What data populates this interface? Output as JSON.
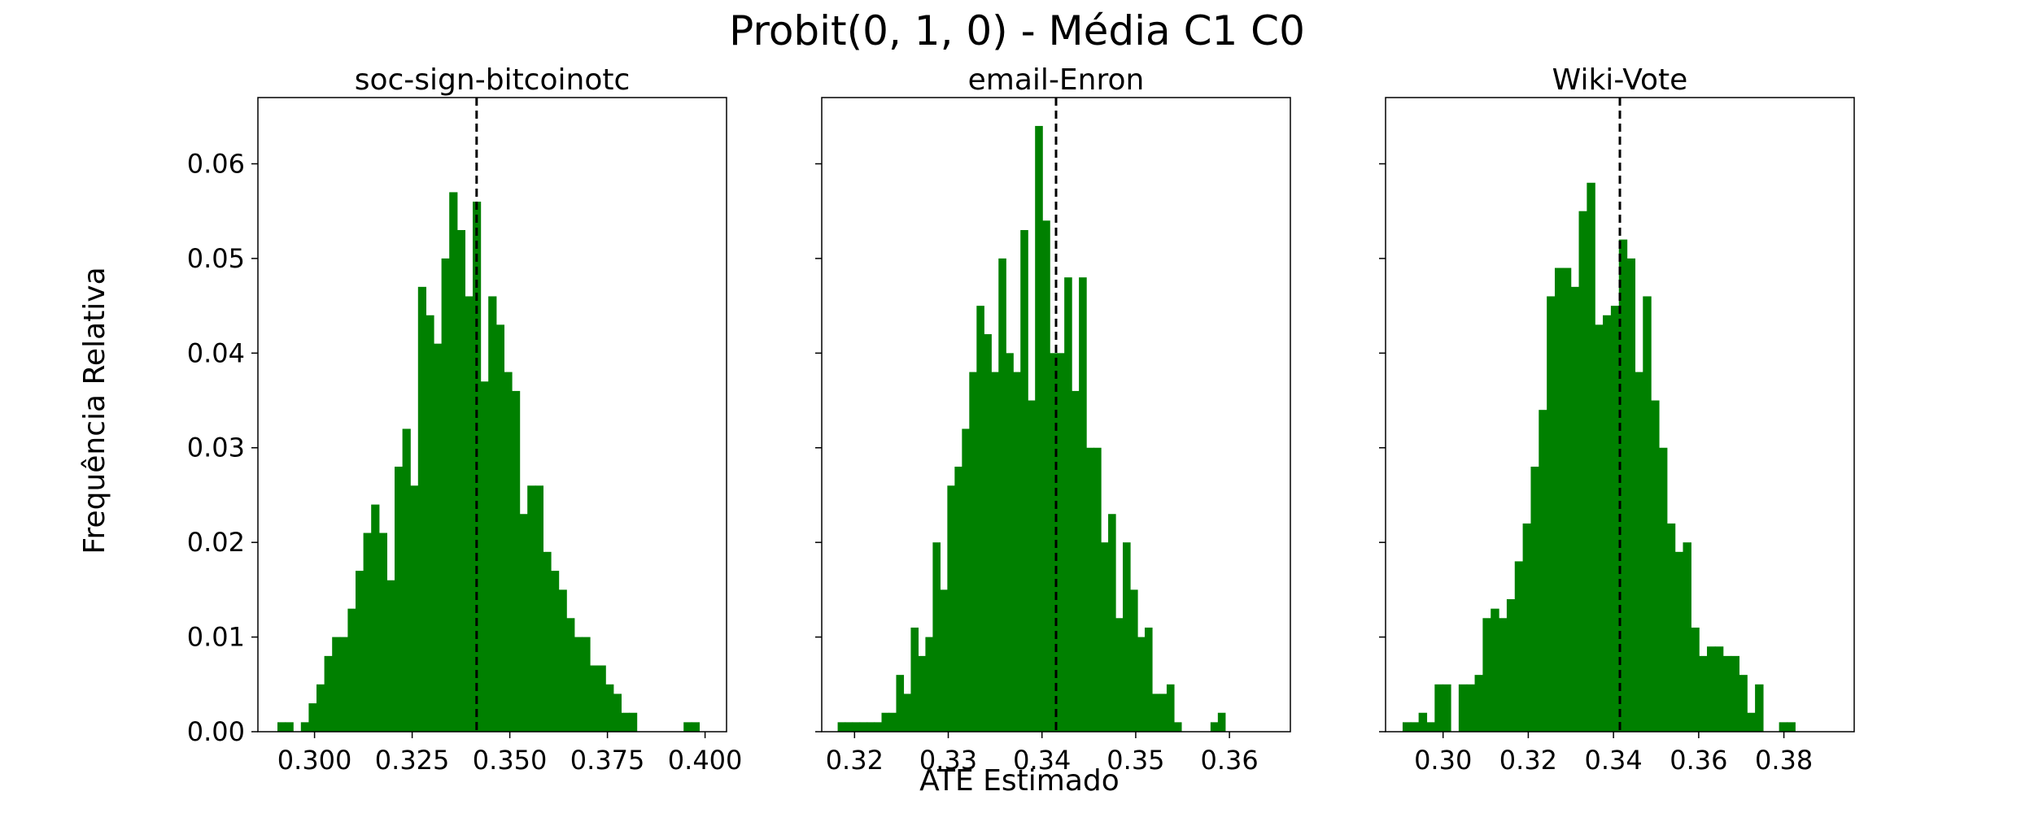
{
  "figure": {
    "title": "Probit(0, 1, 0) - Média C1 C0",
    "xlabel": "ATE Estimado",
    "ylabel": "Frequência Relativa"
  },
  "chart_data": [
    {
      "type": "bar",
      "title": "soc-sign-bitcoinotc",
      "bar_color": "#008000",
      "reference_line_color": "#000000",
      "reference_line_x": 0.3415,
      "xlim": [
        0.2855,
        0.4055
      ],
      "ylim": [
        0,
        0.067
      ],
      "x_ticks": [
        0.3,
        0.325,
        0.35,
        0.375,
        0.4
      ],
      "x_tick_labels": [
        "0.300",
        "0.325",
        "0.350",
        "0.375",
        "0.400"
      ],
      "y_ticks": [
        0,
        0.01,
        0.02,
        0.03,
        0.04,
        0.05,
        0.06
      ],
      "y_tick_labels": [
        "0.00",
        "0.01",
        "0.02",
        "0.03",
        "0.04",
        "0.05",
        "0.06"
      ],
      "bin_start": 0.2905,
      "bin_width": 0.002,
      "values": [
        0.001,
        0.001,
        0,
        0.001,
        0.003,
        0.005,
        0.008,
        0.01,
        0.01,
        0.013,
        0.017,
        0.021,
        0.024,
        0.021,
        0.016,
        0.028,
        0.032,
        0.026,
        0.047,
        0.044,
        0.041,
        0.05,
        0.057,
        0.053,
        0.046,
        0.056,
        0.037,
        0.046,
        0.043,
        0.038,
        0.036,
        0.023,
        0.026,
        0.026,
        0.019,
        0.017,
        0.015,
        0.012,
        0.01,
        0.01,
        0.007,
        0.007,
        0.005,
        0.004,
        0.002,
        0.002,
        0,
        0,
        0,
        0,
        0,
        0,
        0.001,
        0.001
      ]
    },
    {
      "type": "bar",
      "title": "email-Enron",
      "bar_color": "#008000",
      "reference_line_color": "#000000",
      "reference_line_x": 0.3415,
      "xlim": [
        0.3165,
        0.3665
      ],
      "ylim": [
        0,
        0.067
      ],
      "x_ticks": [
        0.32,
        0.33,
        0.34,
        0.35,
        0.36
      ],
      "x_tick_labels": [
        "0.32",
        "0.33",
        "0.34",
        "0.35",
        "0.36"
      ],
      "y_ticks": [
        0,
        0.01,
        0.02,
        0.03,
        0.04,
        0.05,
        0.06
      ],
      "y_tick_labels": [
        "",
        "",
        "",
        "",
        "",
        "",
        ""
      ],
      "bin_start": 0.3182,
      "bin_width": 0.00078,
      "values": [
        0.001,
        0.001,
        0.001,
        0.001,
        0.001,
        0.001,
        0.002,
        0.002,
        0.006,
        0.004,
        0.011,
        0.008,
        0.01,
        0.02,
        0.015,
        0.026,
        0.028,
        0.032,
        0.038,
        0.045,
        0.042,
        0.038,
        0.05,
        0.04,
        0.038,
        0.053,
        0.035,
        0.064,
        0.054,
        0.04,
        0.04,
        0.048,
        0.036,
        0.048,
        0.03,
        0.03,
        0.02,
        0.023,
        0.012,
        0.02,
        0.015,
        0.01,
        0.011,
        0.004,
        0.004,
        0.005,
        0.001,
        0,
        0,
        0,
        0,
        0.001,
        0.002
      ]
    },
    {
      "type": "bar",
      "title": "Wiki-Vote",
      "bar_color": "#008000",
      "reference_line_color": "#000000",
      "reference_line_x": 0.3415,
      "xlim": [
        0.2865,
        0.3965
      ],
      "ylim": [
        0,
        0.067
      ],
      "x_ticks": [
        0.3,
        0.32,
        0.34,
        0.36,
        0.38
      ],
      "x_tick_labels": [
        "0.30",
        "0.32",
        "0.34",
        "0.36",
        "0.38"
      ],
      "y_ticks": [
        0,
        0.01,
        0.02,
        0.03,
        0.04,
        0.05,
        0.06
      ],
      "y_tick_labels": [
        "",
        "",
        "",
        "",
        "",
        "",
        ""
      ],
      "bin_start": 0.2905,
      "bin_width": 0.00188,
      "values": [
        0.001,
        0.001,
        0.002,
        0.001,
        0.005,
        0.005,
        0,
        0.005,
        0.005,
        0.006,
        0.012,
        0.013,
        0.012,
        0.014,
        0.018,
        0.022,
        0.028,
        0.034,
        0.046,
        0.049,
        0.049,
        0.047,
        0.055,
        0.058,
        0.043,
        0.044,
        0.045,
        0.052,
        0.05,
        0.038,
        0.046,
        0.035,
        0.03,
        0.022,
        0.019,
        0.02,
        0.011,
        0.008,
        0.009,
        0.009,
        0.008,
        0.008,
        0.006,
        0.002,
        0.005,
        0,
        0,
        0.001,
        0.001,
        0,
        0,
        0,
        0
      ]
    }
  ]
}
